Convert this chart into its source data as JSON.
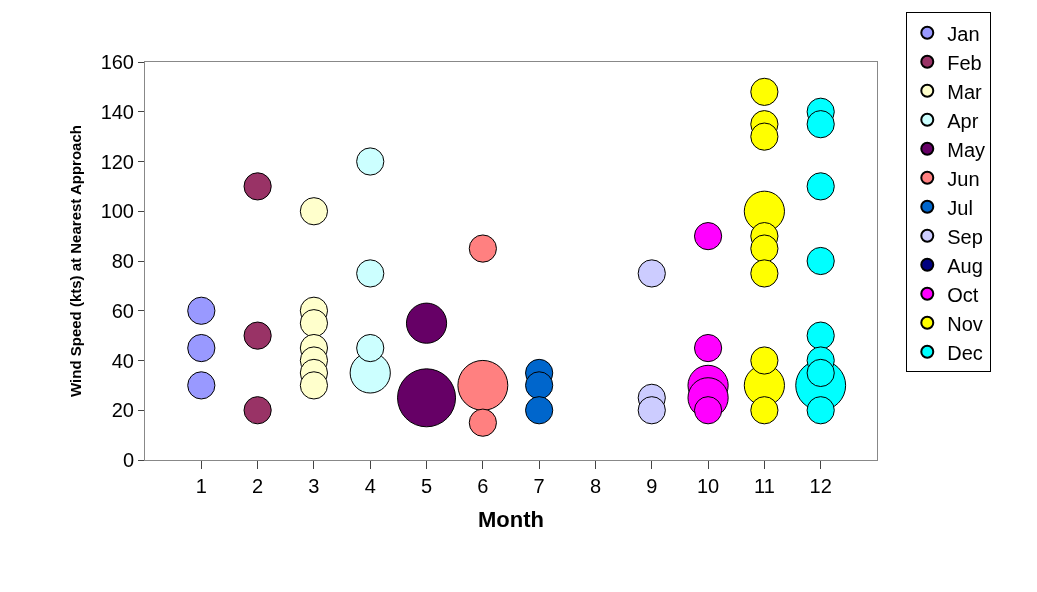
{
  "chart_data": {
    "type": "bubble",
    "xlabel": "Month",
    "ylabel": "Wind Speed (kts) at Nearest Approach",
    "xlim": [
      0,
      13
    ],
    "xticks": [
      1,
      2,
      3,
      4,
      5,
      6,
      7,
      8,
      9,
      10,
      11,
      12
    ],
    "ylim": [
      0,
      160
    ],
    "yticks": [
      0,
      20,
      40,
      60,
      80,
      100,
      120,
      140,
      160
    ],
    "grid": false,
    "legend": "right",
    "marker": "circle",
    "series": [
      {
        "name": "Jan",
        "color": "#9999ff",
        "x": [
          1,
          1,
          1
        ],
        "values": [
          60,
          45,
          30
        ],
        "sizes": [
          0.22,
          0.22,
          0.22
        ]
      },
      {
        "name": "Feb",
        "color": "#993366",
        "x": [
          2,
          2,
          2
        ],
        "values": [
          110,
          50,
          20
        ],
        "sizes": [
          0.22,
          0.22,
          0.22
        ]
      },
      {
        "name": "Mar",
        "color": "#ffffcc",
        "x": [
          3,
          3,
          3,
          3,
          3,
          3,
          3
        ],
        "values": [
          100,
          60,
          55,
          45,
          40,
          35,
          30
        ],
        "sizes": [
          0.22,
          0.22,
          0.22,
          0.22,
          0.22,
          0.22,
          0.22
        ]
      },
      {
        "name": "Apr",
        "color": "#ccffff",
        "x": [
          4,
          4,
          4,
          4
        ],
        "values": [
          35,
          120,
          75,
          45
        ],
        "sizes": [
          0.48,
          0.22,
          0.22,
          0.22
        ]
      },
      {
        "name": "May",
        "color": "#660066",
        "x": [
          5,
          5
        ],
        "values": [
          55,
          25
        ],
        "sizes": [
          0.48,
          1
        ]
      },
      {
        "name": "Jun",
        "color": "#ff8080",
        "x": [
          6,
          6,
          6
        ],
        "values": [
          85,
          30,
          15
        ],
        "sizes": [
          0.22,
          0.74,
          0.22
        ]
      },
      {
        "name": "Jul",
        "color": "#0066cc",
        "x": [
          7,
          7,
          7
        ],
        "values": [
          35,
          30,
          20
        ],
        "sizes": [
          0.22,
          0.22,
          0.22
        ]
      },
      {
        "name": "Sep",
        "color": "#ccccff",
        "x": [
          9,
          9,
          9
        ],
        "values": [
          75,
          25,
          20
        ],
        "sizes": [
          0.22,
          0.22,
          0.22
        ]
      },
      {
        "name": "Aug",
        "color": "#000080"
      },
      {
        "name": "Oct",
        "color": "#ff00ff",
        "x": [
          10,
          10,
          10,
          10,
          10
        ],
        "values": [
          30,
          25,
          90,
          45,
          20
        ],
        "sizes": [
          0.48,
          0.48,
          0.22,
          0.22,
          0.22
        ]
      },
      {
        "name": "Nov",
        "color": "#ffff00",
        "x": [
          11,
          11,
          11,
          11,
          11,
          11,
          11,
          11,
          11,
          11
        ],
        "values": [
          100,
          30,
          148,
          135,
          130,
          90,
          85,
          75,
          40,
          20
        ],
        "sizes": [
          0.48,
          0.48,
          0.22,
          0.22,
          0.22,
          0.22,
          0.22,
          0.22,
          0.22,
          0.22
        ]
      },
      {
        "name": "Dec",
        "color": "#00ffff",
        "x": [
          12,
          12,
          12,
          12,
          12,
          12,
          12,
          12,
          12
        ],
        "values": [
          30,
          140,
          135,
          110,
          80,
          50,
          40,
          35,
          20
        ],
        "sizes": [
          0.74,
          0.22,
          0.22,
          0.22,
          0.22,
          0.22,
          0.22,
          0.22,
          0.22
        ]
      }
    ]
  }
}
